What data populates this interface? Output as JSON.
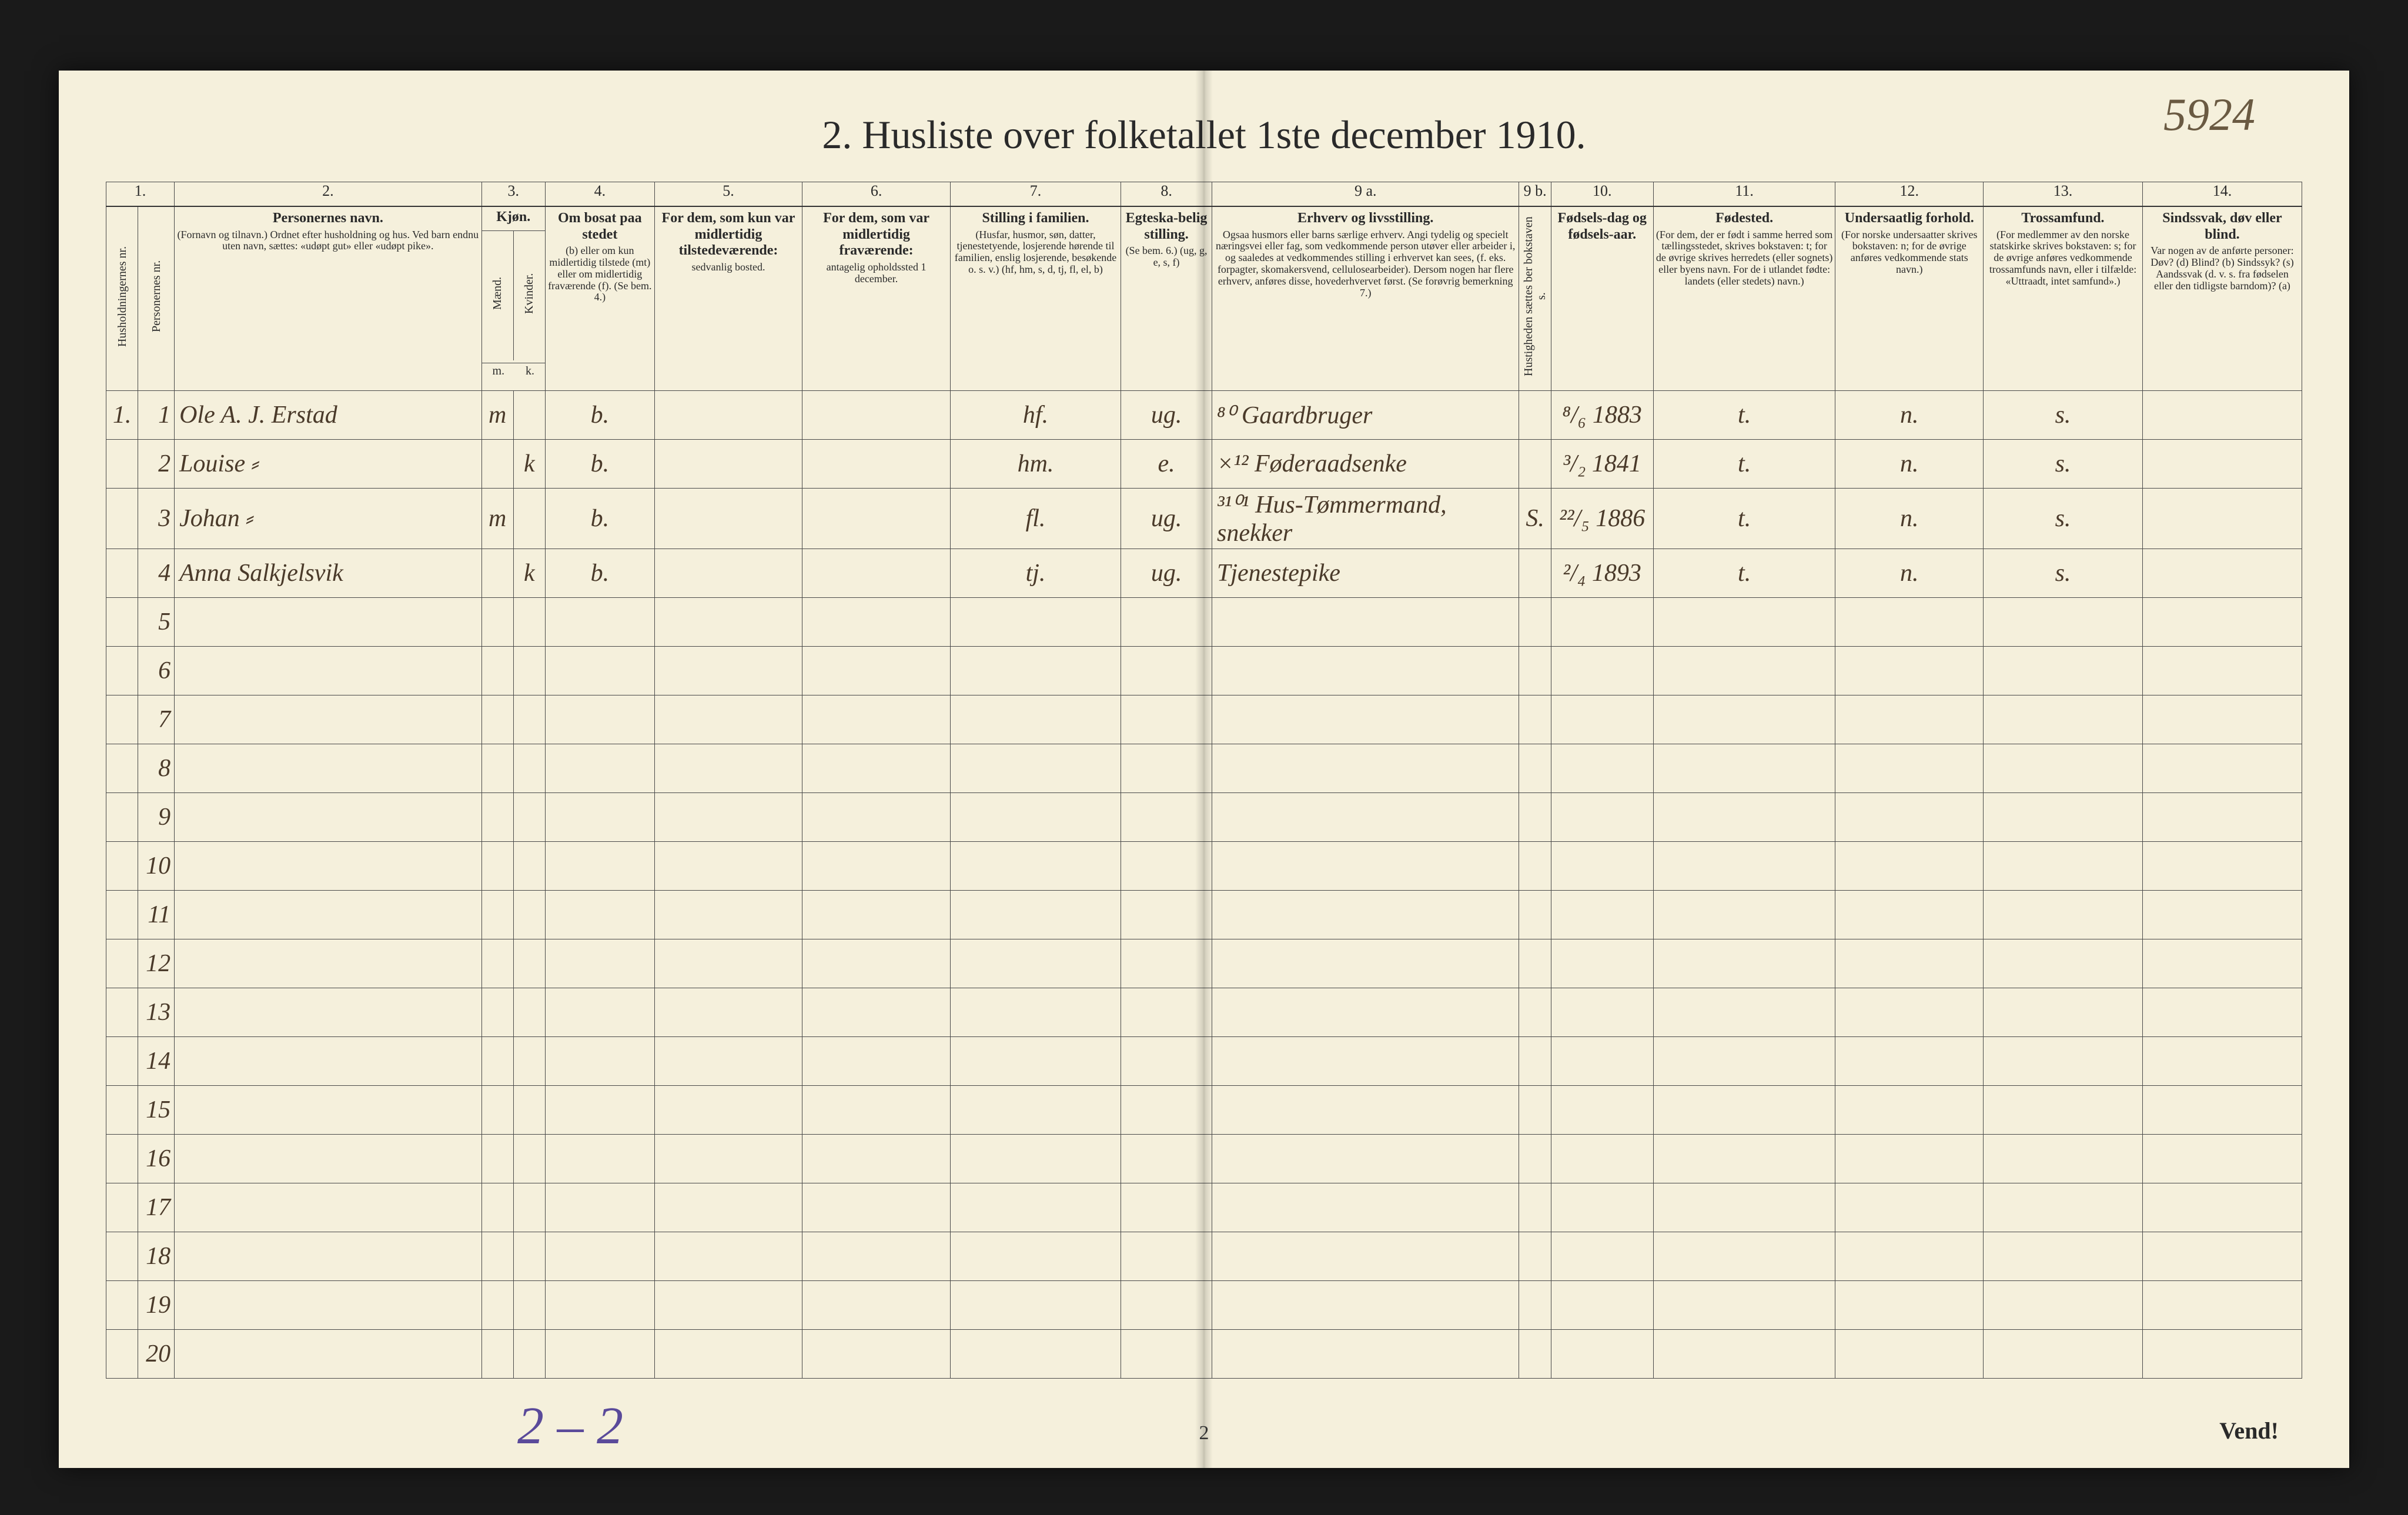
{
  "page": {
    "title": "2.  Husliste over folketallet 1ste december 1910.",
    "top_annotation": "5924",
    "bottom_annotation": "2 – 2",
    "center_page_number": "2",
    "vend_label": "Vend!"
  },
  "colors": {
    "paper": "#f5f0dc",
    "ink_print": "#2a2a2a",
    "ink_hand": "#4a3a2a",
    "ink_pencil_blue": "#5a4a9a",
    "border": "#4a4a4a",
    "background": "#1a1a1a"
  },
  "column_numbers": [
    "1.",
    "2.",
    "3.",
    "4.",
    "5.",
    "6.",
    "7.",
    "8.",
    "9 a.",
    "9 b.",
    "10.",
    "11.",
    "12.",
    "13.",
    "14."
  ],
  "headers": {
    "c1": {
      "vertical": "Husholdningernes nr."
    },
    "c2": {
      "vertical": "Personernes nr."
    },
    "c3": {
      "main": "Personernes navn.",
      "sub": "(Fornavn og tilnavn.)\nOrdnet efter husholdning og hus.\nVed barn endnu uten navn, sættes: «udøpt gut» eller «udøpt pike»."
    },
    "c4_5": {
      "main": "Kjøn.",
      "left_vertical": "Mænd.",
      "right_vertical": "Kvinder.",
      "foot_left": "m.",
      "foot_right": "k."
    },
    "c6": {
      "main": "Om bosat paa stedet",
      "sub": "(b) eller om kun midlertidig tilstede (mt) eller om midlertidig fraværende (f).\n(Se bem. 4.)"
    },
    "c7": {
      "main": "For dem, som kun var midlertidig tilstedeværende:",
      "sub": "sedvanlig bosted."
    },
    "c8": {
      "main": "For dem, som var midlertidig fraværende:",
      "sub": "antagelig opholdssted 1 december."
    },
    "c9": {
      "main": "Stilling i familien.",
      "sub": "(Husfar, husmor, søn, datter, tjenestetyende, losjerende hørende til familien, enslig losjerende, besøkende o. s. v.)\n(hf, hm, s, d, tj, fl, el, b)"
    },
    "c10": {
      "main": "Egteska-belig stilling.",
      "sub": "(Se bem. 6.)\n(ug, g, e, s, f)"
    },
    "c11": {
      "main": "Erhverv og livsstilling.",
      "sub": "Ogsaa husmors eller barns særlige erhverv. Angi tydelig og specielt næringsvei eller fag, som vedkommende person utøver eller arbeider i, og saaledes at vedkommendes stilling i erhvervet kan sees, (f. eks. forpagter, skomakersvend, cellulosearbeider). Dersom nogen har flere erhverv, anføres disse, hovederhvervet først.\n(Se forøvrig bemerkning 7.)"
    },
    "c12": {
      "vertical": "Hustigheden sættes ber bokstaven s."
    },
    "c13": {
      "main": "Fødsels-dag og fødsels-aar."
    },
    "c14": {
      "main": "Fødested.",
      "sub": "(For dem, der er født i samme herred som tællingsstedet, skrives bokstaven: t; for de øvrige skrives herredets (eller sognets) eller byens navn. For de i utlandet fødte: landets (eller stedets) navn.)"
    },
    "c15": {
      "main": "Undersaatlig forhold.",
      "sub": "(For norske undersaatter skrives bokstaven: n; for de øvrige anføres vedkommende stats navn.)"
    },
    "c16": {
      "main": "Trossamfund.",
      "sub": "(For medlemmer av den norske statskirke skrives bokstaven: s; for de øvrige anføres vedkommende trossamfunds navn, eller i tilfælde: «Uttraadt, intet samfund».)"
    },
    "c17": {
      "main": "Sindssvak, døv eller blind.",
      "sub": "Var nogen av de anførte personer:\nDøv? (d)\nBlind? (b)\nSindssyk? (s)\nAandssvak (d. v. s. fra fødselen eller den tidligste barndom)? (a)"
    }
  },
  "rows": [
    {
      "hh": "1.",
      "pn": "1",
      "name": "Ole A. J. Erstad",
      "m": "m",
      "k": "",
      "bosat": "b.",
      "mt": "",
      "fr": "",
      "stilling": "hf.",
      "egt": "ug.",
      "erhverv": "⁸⁰ Gaardbruger",
      "hs": "",
      "fdato": "⁸/₆ 1883",
      "fsted": "t.",
      "under": "n.",
      "tros": "s."
    },
    {
      "hh": "",
      "pn": "2",
      "name": "Louise  ⸗",
      "m": "",
      "k": "k",
      "bosat": "b.",
      "mt": "",
      "fr": "",
      "stilling": "hm.",
      "egt": "e.",
      "erhverv": "×¹² Føderaadsenke",
      "hs": "",
      "fdato": "³/₂ 1841",
      "fsted": "t.",
      "under": "n.",
      "tros": "s."
    },
    {
      "hh": "",
      "pn": "3",
      "name": "Johan  ⸗",
      "m": "m",
      "k": "",
      "bosat": "b.",
      "mt": "",
      "fr": "",
      "stilling": "fl.",
      "egt": "ug.",
      "erhverv": "³¹⁰¹ Hus-Tømmermand, snekker",
      "hs": "S.",
      "fdato": "²²/₅ 1886",
      "fsted": "t.",
      "under": "n.",
      "tros": "s."
    },
    {
      "hh": "",
      "pn": "4",
      "name": "Anna Salkjelsvik",
      "m": "",
      "k": "k",
      "bosat": "b.",
      "mt": "",
      "fr": "",
      "stilling": "tj.",
      "egt": "ug.",
      "erhverv": "Tjenestepike",
      "hs": "",
      "fdato": "²/₄ 1893",
      "fsted": "t.",
      "under": "n.",
      "tros": "s."
    }
  ],
  "empty_row_numbers": [
    "5",
    "6",
    "7",
    "8",
    "9",
    "10",
    "11",
    "12",
    "13",
    "14",
    "15",
    "16",
    "17",
    "18",
    "19",
    "20"
  ]
}
